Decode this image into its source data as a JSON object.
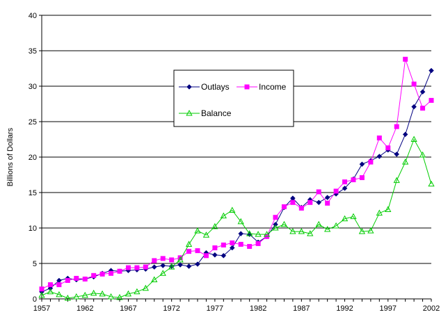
{
  "chart_data": {
    "type": "line",
    "title": "",
    "xlabel": "",
    "ylabel": "Billions of Dollars",
    "ylim": [
      0,
      40
    ],
    "xlim": [
      1957,
      2002
    ],
    "grid": "horizontal",
    "legend_placement": "center-top",
    "y_ticks": [
      "0",
      "5",
      "10",
      "15",
      "20",
      "25",
      "30",
      "35",
      "40"
    ],
    "x_ticks": [
      "1957",
      "1962",
      "1967",
      "1972",
      "1977",
      "1982",
      "1987",
      "1992",
      "1997",
      "2002"
    ],
    "x": [
      1957,
      1958,
      1959,
      1960,
      1961,
      1962,
      1963,
      1964,
      1965,
      1966,
      1967,
      1968,
      1969,
      1970,
      1971,
      1972,
      1973,
      1974,
      1975,
      1976,
      1977,
      1978,
      1979,
      1980,
      1981,
      1982,
      1983,
      1984,
      1985,
      1986,
      1987,
      1988,
      1989,
      1990,
      1991,
      1992,
      1993,
      1994,
      1995,
      1996,
      1997,
      1998,
      1999,
      2000,
      2001,
      2002
    ],
    "series": [
      {
        "name": "Outlays",
        "color": "#000080",
        "marker": "diamond",
        "values": [
          1.0,
          1.5,
          2.6,
          2.9,
          2.7,
          2.8,
          3.1,
          3.6,
          4.0,
          3.9,
          4.0,
          4.1,
          4.2,
          4.5,
          4.7,
          4.6,
          4.8,
          4.6,
          4.9,
          6.5,
          6.2,
          6.1,
          7.2,
          9.2,
          9.1,
          8.0,
          8.8,
          10.5,
          12.9,
          14.2,
          12.9,
          14.0,
          13.6,
          14.3,
          14.8,
          15.6,
          16.9,
          19.0,
          19.5,
          20.1,
          21.0,
          20.4,
          23.2,
          27.1,
          29.2,
          32.2
        ]
      },
      {
        "name": "Income",
        "color": "#FF00FF",
        "marker": "square",
        "values": [
          1.4,
          2.0,
          2.0,
          2.6,
          2.9,
          2.8,
          3.3,
          3.5,
          3.6,
          3.9,
          4.4,
          4.4,
          4.5,
          5.4,
          5.7,
          5.5,
          5.8,
          6.7,
          6.8,
          6.1,
          7.2,
          7.6,
          7.9,
          7.7,
          7.4,
          7.8,
          8.8,
          11.5,
          13.0,
          13.6,
          12.8,
          13.6,
          15.1,
          13.5,
          15.2,
          16.5,
          16.8,
          17.1,
          19.3,
          22.7,
          21.3,
          24.3,
          33.8,
          30.3,
          26.9,
          28.0
        ]
      },
      {
        "name": "Balance",
        "color": "#00CC00",
        "marker": "triangle",
        "values": [
          0.5,
          1.0,
          0.6,
          0.1,
          0.3,
          0.5,
          0.8,
          0.7,
          0.3,
          0.2,
          0.7,
          1.0,
          1.5,
          2.7,
          3.6,
          4.5,
          5.5,
          7.7,
          9.6,
          9.0,
          10.2,
          11.7,
          12.5,
          10.9,
          9.2,
          9.1,
          9.1,
          10.0,
          10.5,
          9.5,
          9.5,
          9.2,
          10.5,
          9.8,
          10.3,
          11.3,
          11.6,
          9.5,
          9.6,
          12.1,
          12.6,
          16.7,
          19.3,
          22.5,
          20.3,
          16.2
        ]
      }
    ]
  }
}
